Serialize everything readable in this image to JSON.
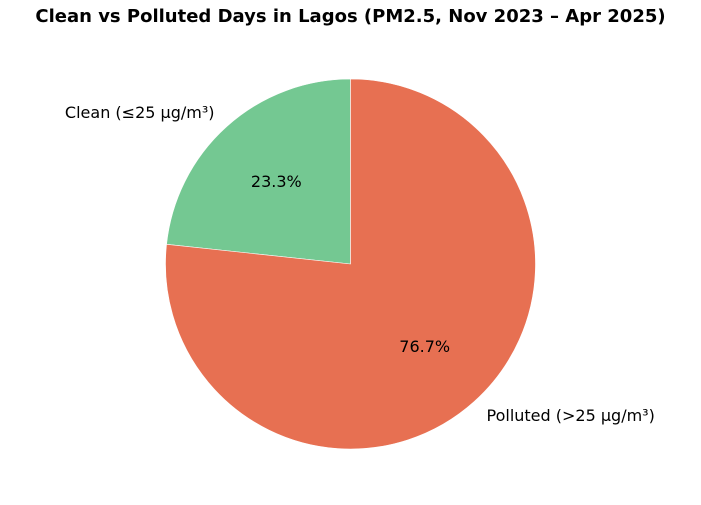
{
  "chart_data": {
    "type": "pie",
    "title": "Clean vs Polluted Days in Lagos (PM2.5, Nov 2023 – Apr 2025)",
    "slices": [
      {
        "label": "Clean (≤25 µg/m³)",
        "value": 23.3,
        "pct_label": "23.3%",
        "color": "#74c892"
      },
      {
        "label": "Polluted (>25 µg/m³)",
        "value": 76.7,
        "pct_label": "76.7%",
        "color": "#e77052"
      }
    ],
    "start_angle_deg": 90,
    "direction": "counterclockwise",
    "legend": "none"
  }
}
